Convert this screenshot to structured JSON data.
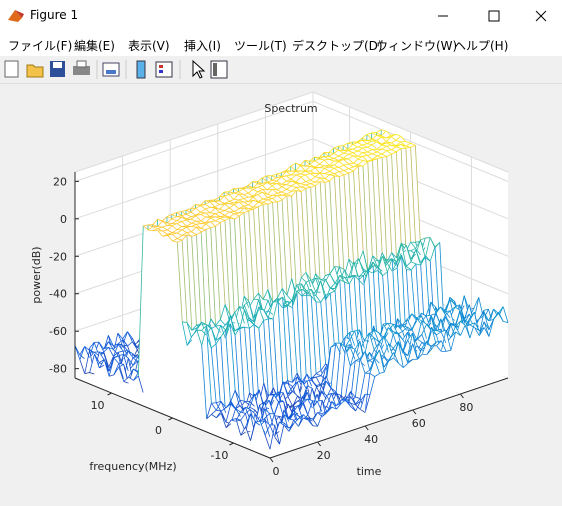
{
  "window": {
    "title": "Figure 1"
  },
  "menu": [
    "ファイル(F)",
    "編集(E)",
    "表示(V)",
    "挿入(I)",
    "ツール(T)",
    "デスクトップ(D)",
    "ウィンドウ(W)",
    "ヘルプ(H)"
  ],
  "chart_data": {
    "type": "mesh3d",
    "title": "Spectrum",
    "xlabel": "time",
    "ylabel": "frequency(MHz)",
    "zlabel": "power(dB)",
    "xlim": [
      0,
      100
    ],
    "xticks": [
      0,
      20,
      40,
      60,
      80
    ],
    "ylim": [
      -16,
      16
    ],
    "yticks": [
      -10,
      0,
      10
    ],
    "zlim": [
      -85,
      25
    ],
    "zticks": [
      -80,
      -60,
      -40,
      -20,
      0,
      20
    ],
    "grid": true
  }
}
